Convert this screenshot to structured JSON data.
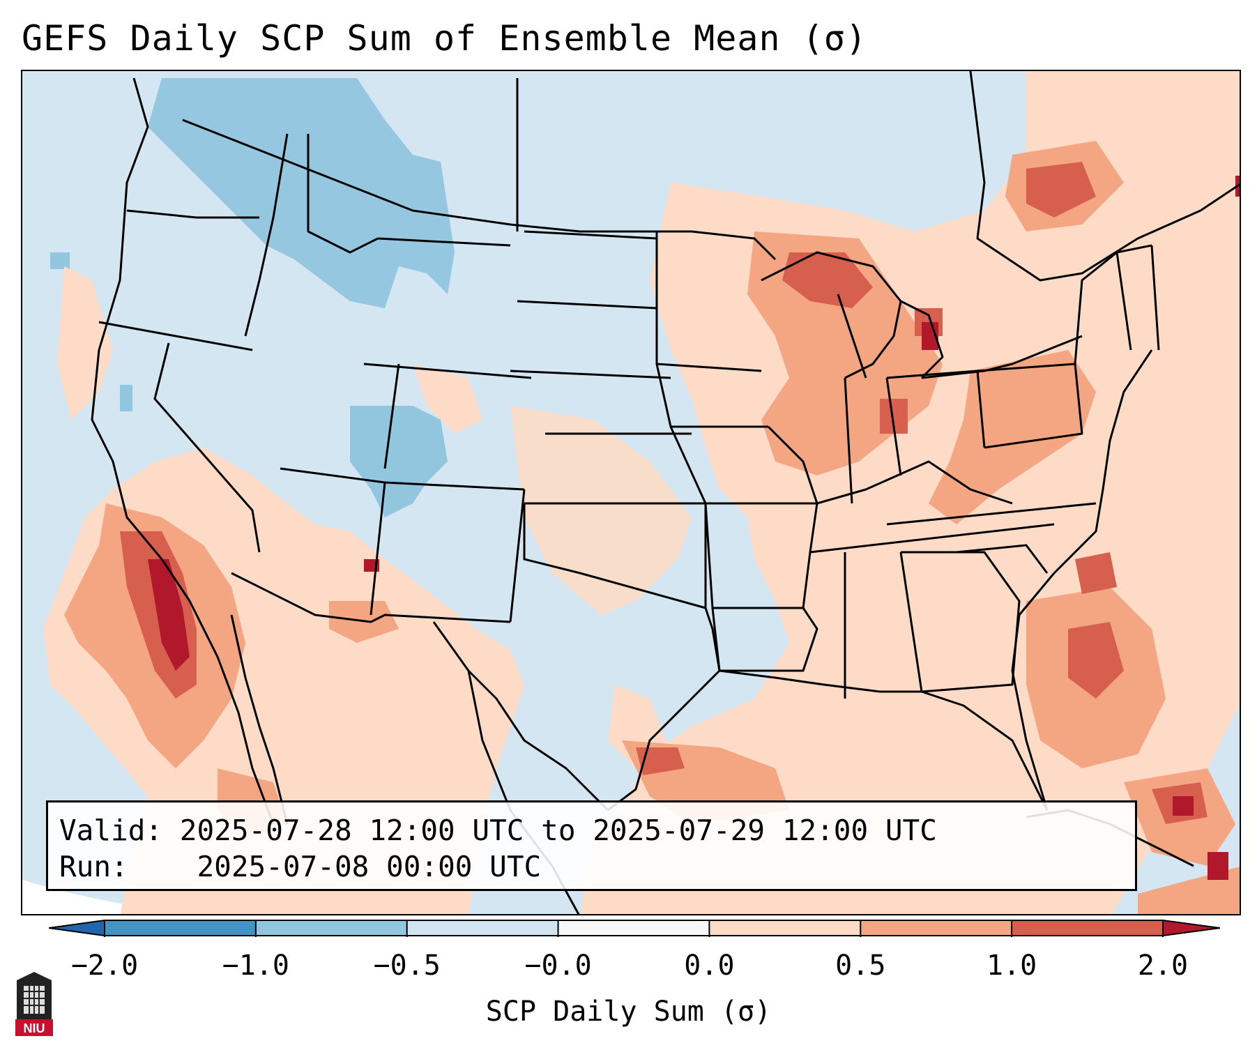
{
  "title": "GEFS Daily SCP Sum of Ensemble Mean (σ)",
  "info": {
    "valid_label": "Valid:",
    "valid_value": "2025-07-28 12:00 UTC to 2025-07-29 12:00 UTC",
    "run_label": "Run:",
    "run_value": "2025-07-08 00:00 UTC"
  },
  "colorbar": {
    "label": "SCP Daily Sum (σ)",
    "ticks": [
      "−2.0",
      "−1.0",
      "−0.5",
      "−0.0",
      "0.0",
      "0.5",
      "1.0",
      "2.0"
    ],
    "bins": [
      {
        "color": "#4393c3"
      },
      {
        "color": "#92c5de"
      },
      {
        "color": "#d1e5f0"
      },
      {
        "color": "#f7f7f7"
      },
      {
        "color": "#fddbc7"
      },
      {
        "color": "#f4a582"
      },
      {
        "color": "#d6604d"
      }
    ],
    "under_color": "#2166ac",
    "over_color": "#b2182b"
  },
  "logo": {
    "text": "NIU"
  },
  "colors": {
    "neg_strong": "#92c5de",
    "neg_weak": "#d1e5f0",
    "pos_weak": "#fddbc7",
    "pos_mid": "#f4a582",
    "pos_strong": "#d6604d",
    "pos_max": "#b2182b"
  }
}
